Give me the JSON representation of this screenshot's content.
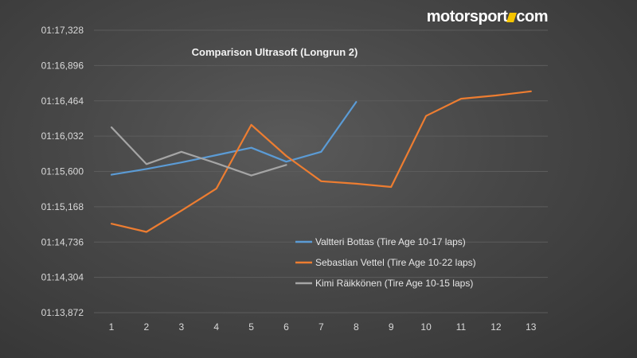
{
  "brand": {
    "name_part1": "motorsport",
    "name_part2": "com",
    "accent_color": "#f5c400"
  },
  "chart_data": {
    "type": "line",
    "title": "Comparison Ultrasoft (Longrun 2)",
    "xlabel": "",
    "ylabel": "",
    "categories": [
      "1",
      "2",
      "3",
      "4",
      "5",
      "6",
      "7",
      "8",
      "9",
      "10",
      "11",
      "12",
      "13"
    ],
    "ylim_seconds": [
      73.872,
      77.328
    ],
    "y_ticks": [
      {
        "label": "01:17,328",
        "value": 77.328
      },
      {
        "label": "01:16,896",
        "value": 76.896
      },
      {
        "label": "01:16,464",
        "value": 76.464
      },
      {
        "label": "01:16,032",
        "value": 76.032
      },
      {
        "label": "01:15,600",
        "value": 75.6
      },
      {
        "label": "01:15,168",
        "value": 75.168
      },
      {
        "label": "01:14,736",
        "value": 74.736
      },
      {
        "label": "01:14,304",
        "value": 74.304
      },
      {
        "label": "01:13,872",
        "value": 73.872
      }
    ],
    "grid": true,
    "legend_position": "bottom-right",
    "series": [
      {
        "name": "Valtteri Bottas (Tire Age 10-17 laps)",
        "color": "#5b9bd5",
        "x": [
          1,
          2,
          3,
          4,
          5,
          6,
          7,
          8
        ],
        "values": [
          75.56,
          75.63,
          75.71,
          75.8,
          75.89,
          75.72,
          75.84,
          76.45
        ]
      },
      {
        "name": "Sebastian Vettel (Tire Age 10-22 laps)",
        "color": "#ed7d31",
        "x": [
          1,
          2,
          3,
          4,
          5,
          6,
          7,
          8,
          9,
          10,
          11,
          12,
          13
        ],
        "values": [
          74.96,
          74.86,
          75.12,
          75.39,
          76.17,
          75.79,
          75.48,
          75.45,
          75.41,
          76.28,
          76.49,
          76.53,
          76.58
        ]
      },
      {
        "name": "Kimi Räikkönen (Tire Age 10-15 laps)",
        "color": "#a5a5a5",
        "x": [
          1,
          2,
          3,
          4,
          5,
          6
        ],
        "values": [
          76.14,
          75.69,
          75.84,
          75.7,
          75.55,
          75.68
        ]
      }
    ]
  }
}
